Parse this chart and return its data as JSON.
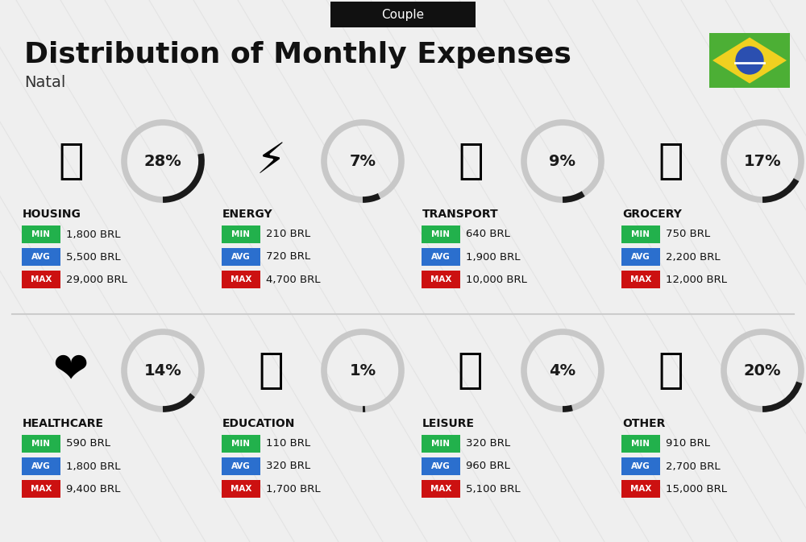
{
  "title": "Distribution of Monthly Expenses",
  "subtitle": "Natal",
  "tag": "Couple",
  "bg_color": "#efefef",
  "categories": [
    {
      "name": "HOUSING",
      "percent": 28,
      "min": "1,800 BRL",
      "avg": "5,500 BRL",
      "max": "29,000 BRL",
      "row": 0,
      "col": 0
    },
    {
      "name": "ENERGY",
      "percent": 7,
      "min": "210 BRL",
      "avg": "720 BRL",
      "max": "4,700 BRL",
      "row": 0,
      "col": 1
    },
    {
      "name": "TRANSPORT",
      "percent": 9,
      "min": "640 BRL",
      "avg": "1,900 BRL",
      "max": "10,000 BRL",
      "row": 0,
      "col": 2
    },
    {
      "name": "GROCERY",
      "percent": 17,
      "min": "750 BRL",
      "avg": "2,200 BRL",
      "max": "12,000 BRL",
      "row": 0,
      "col": 3
    },
    {
      "name": "HEALTHCARE",
      "percent": 14,
      "min": "590 BRL",
      "avg": "1,800 BRL",
      "max": "9,400 BRL",
      "row": 1,
      "col": 0
    },
    {
      "name": "EDUCATION",
      "percent": 1,
      "min": "110 BRL",
      "avg": "320 BRL",
      "max": "1,700 BRL",
      "row": 1,
      "col": 1
    },
    {
      "name": "LEISURE",
      "percent": 4,
      "min": "320 BRL",
      "avg": "960 BRL",
      "max": "5,100 BRL",
      "row": 1,
      "col": 2
    },
    {
      "name": "OTHER",
      "percent": 20,
      "min": "910 BRL",
      "avg": "2,700 BRL",
      "max": "15,000 BRL",
      "row": 1,
      "col": 3
    }
  ],
  "min_color": "#22b14c",
  "avg_color": "#2b6fce",
  "max_color": "#cc1111",
  "title_color": "#111111",
  "subtitle_color": "#333333",
  "tag_bg": "#111111",
  "tag_color": "#ffffff",
  "donut_dark": "#1a1a1a",
  "donut_light": "#c8c8c8",
  "divider_color": "#cccccc",
  "diag_color": "#d8d8d8",
  "flag_green": "#4caf35",
  "flag_yellow": "#f0d020",
  "flag_blue": "#2b4fb0"
}
